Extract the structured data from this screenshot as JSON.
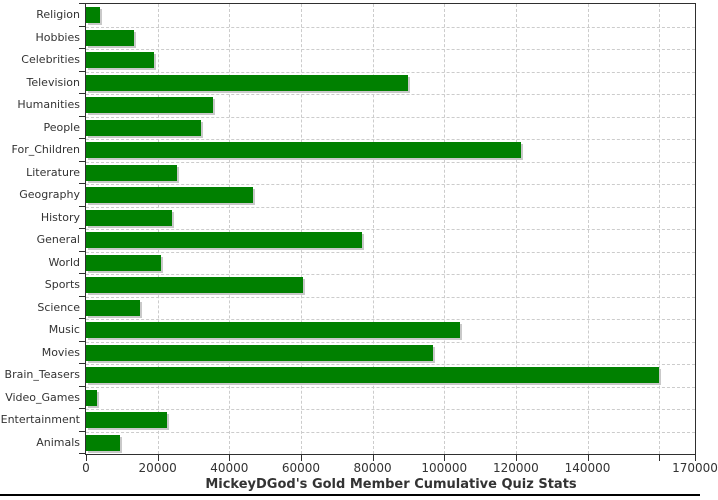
{
  "chart_data": {
    "type": "bar",
    "orientation": "horizontal",
    "title": "MickeyDGod's Gold Member Cumulative Quiz Stats",
    "categories": [
      "Religion",
      "Hobbies",
      "Celebrities",
      "Television",
      "Humanities",
      "People",
      "For_Children",
      "Literature",
      "Geography",
      "History",
      "General",
      "World",
      "Sports",
      "Science",
      "Music",
      "Movies",
      "Brain_Teasers",
      "Video_Games",
      "Entertainment",
      "Animals"
    ],
    "values": [
      4000,
      13500,
      19000,
      90000,
      35500,
      32000,
      121500,
      25500,
      46500,
      24000,
      77000,
      21000,
      60500,
      15000,
      104500,
      97000,
      160000,
      3200,
      22500,
      9400
    ],
    "xlim": [
      0,
      170000
    ],
    "x_ticks": [
      {
        "value": 0,
        "label": "0"
      },
      {
        "value": 20000,
        "label": "20000"
      },
      {
        "value": 40000,
        "label": "40000"
      },
      {
        "value": 60000,
        "label": "60000"
      },
      {
        "value": 80000,
        "label": "80000"
      },
      {
        "value": 100000,
        "label": "100000"
      },
      {
        "value": 120000,
        "label": "120000"
      },
      {
        "value": 140000,
        "label": "140000"
      },
      {
        "value": 160000,
        "label": ""
      },
      {
        "value": 170000,
        "label": "170000"
      }
    ],
    "grid": "dashed-both-axes",
    "legend": "none",
    "colors": {
      "bar": "#008000",
      "bar_shadow": "#c9c9c9",
      "gridline": "#cccccc",
      "axis": "#2f2f2f",
      "text": "#333333",
      "background": "#ffffff"
    }
  }
}
